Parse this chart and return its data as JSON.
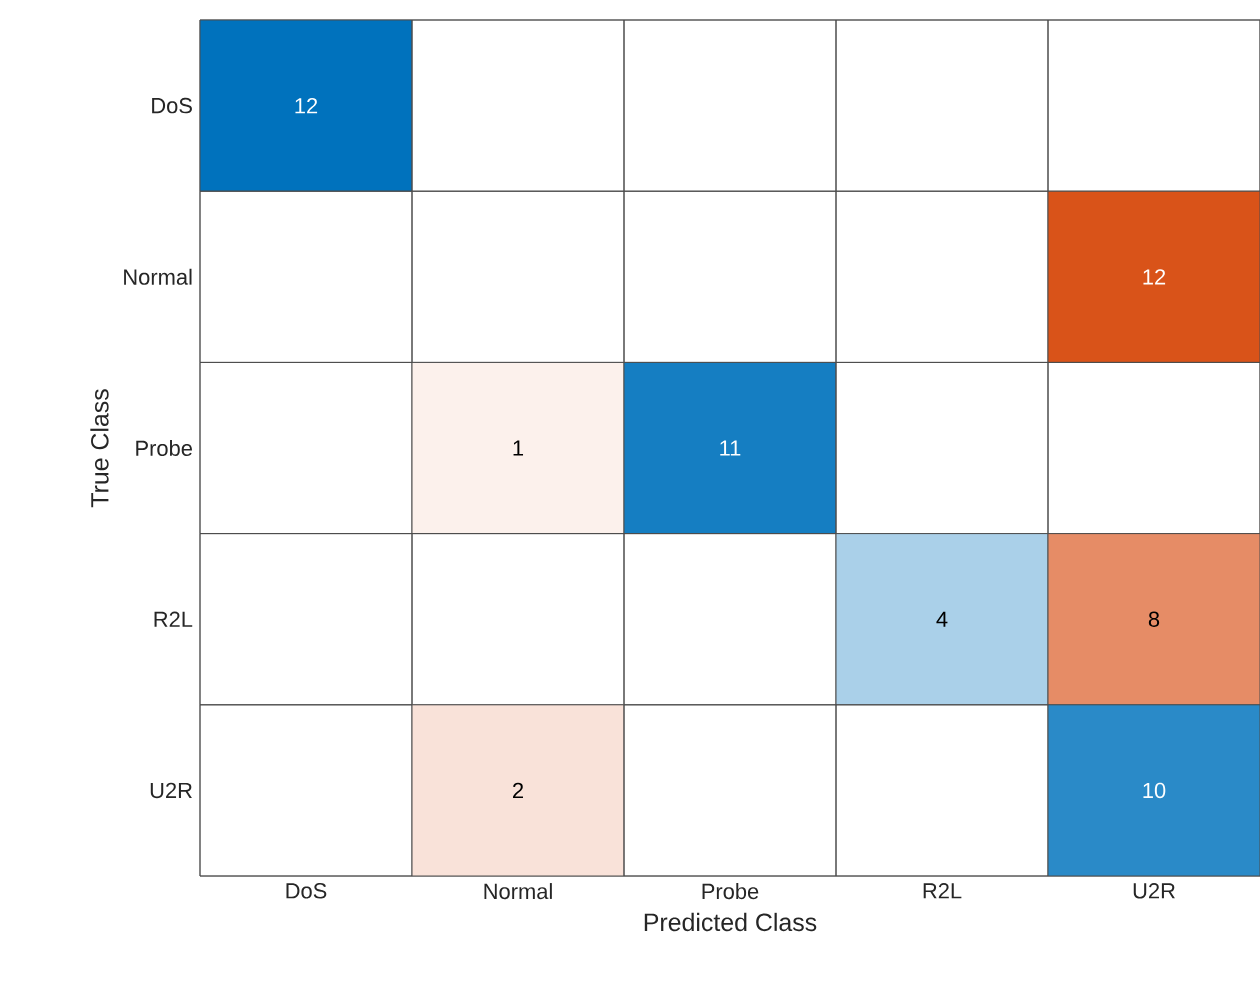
{
  "chart_data": {
    "type": "heatmap",
    "xlabel": "Predicted Class",
    "ylabel": "True Class",
    "categories": [
      "DoS",
      "Normal",
      "Probe",
      "R2L",
      "U2R"
    ],
    "y_categories": [
      "DoS",
      "Normal",
      "Probe",
      "R2L",
      "U2R"
    ],
    "cells": [
      [
        12,
        null,
        null,
        null,
        null
      ],
      [
        null,
        null,
        null,
        null,
        12
      ],
      [
        null,
        1,
        11,
        null,
        null
      ],
      [
        null,
        null,
        null,
        4,
        8
      ],
      [
        null,
        2,
        null,
        null,
        10
      ]
    ],
    "data_labels": true
  }
}
